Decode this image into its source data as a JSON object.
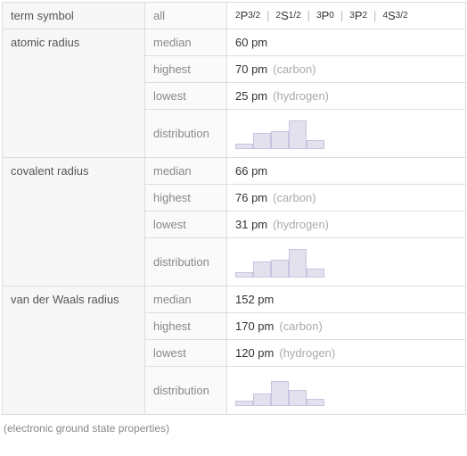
{
  "groups": [
    {
      "label": "term symbol",
      "rows": [
        {
          "label": "all",
          "value_html": "<span class='term-sup'>2</span>P<span class='term-sub'>3/2</span><span class='sep'>|</span><span class='term-sup'>2</span>S<span class='term-sub'>1/2</span><span class='sep'>|</span><span class='term-sup'>3</span>P<span class='term-sub'>0</span><span class='sep'>|</span><span class='term-sup'>3</span>P<span class='term-sub'>2</span><span class='sep'>|</span><span class='term-sup'>4</span>S<span class='term-sub'>3/2</span>"
        }
      ]
    },
    {
      "label": "atomic radius",
      "rows": [
        {
          "label": "median",
          "value": "60 pm"
        },
        {
          "label": "highest",
          "value": "70 pm",
          "note": "(carbon)"
        },
        {
          "label": "lowest",
          "value": "25 pm",
          "note": "(hydrogen)"
        },
        {
          "label": "distribution",
          "dist": [
            6,
            18,
            20,
            32,
            10
          ]
        }
      ]
    },
    {
      "label": "covalent radius",
      "rows": [
        {
          "label": "median",
          "value": "66 pm"
        },
        {
          "label": "highest",
          "value": "76 pm",
          "note": "(carbon)"
        },
        {
          "label": "lowest",
          "value": "31 pm",
          "note": "(hydrogen)"
        },
        {
          "label": "distribution",
          "dist": [
            6,
            18,
            20,
            32,
            10
          ]
        }
      ]
    },
    {
      "label": "van der Waals radius",
      "rows": [
        {
          "label": "median",
          "value": "152 pm"
        },
        {
          "label": "highest",
          "value": "170 pm",
          "note": "(carbon)"
        },
        {
          "label": "lowest",
          "value": "120 pm",
          "note": "(hydrogen)"
        },
        {
          "label": "distribution",
          "dist": [
            6,
            14,
            28,
            18,
            8
          ]
        }
      ]
    }
  ],
  "caption": "(electronic ground state properties)",
  "style": {
    "bar_fill": "#e4e1ef",
    "bar_border": "#c8c3de"
  }
}
